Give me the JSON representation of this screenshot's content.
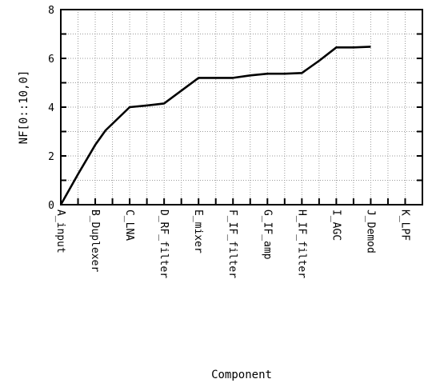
{
  "chart_data": {
    "type": "line",
    "title": "",
    "xlabel": "Component",
    "ylabel": "NF[0::10,0]",
    "categories": [
      "A_input",
      "B_Duplexer",
      "C_LNA",
      "D_RF_filter",
      "E_mixer",
      "F_IF_filter",
      "G_IF_amp",
      "H_IF_filter",
      "I_AGC",
      "J_Demod",
      "K_LPF"
    ],
    "yticks": [
      0,
      2,
      4,
      6,
      8
    ],
    "ylim": [
      0,
      8
    ],
    "grid": true,
    "series": [
      {
        "x": [
          1,
          1.5,
          2,
          2.3,
          3,
          3.5,
          4,
          5,
          5.5,
          6,
          6.5,
          7,
          7.5,
          8,
          8.5,
          9,
          9.5,
          10
        ],
        "y": [
          0,
          1.25,
          2.45,
          3.05,
          4.0,
          4.07,
          4.15,
          5.2,
          5.2,
          5.2,
          5.3,
          5.37,
          5.37,
          5.4,
          5.9,
          6.45,
          6.45,
          6.48
        ]
      }
    ]
  }
}
